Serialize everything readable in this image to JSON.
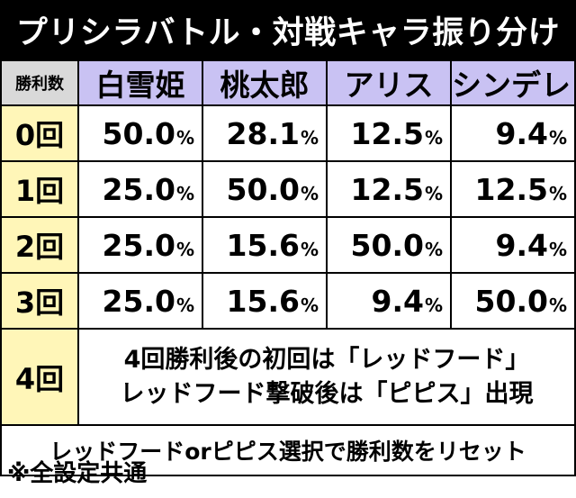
{
  "title": "プリシラバトル・対戦キャラ振り分け",
  "table": {
    "corner_label": "勝利数",
    "columns": [
      "白雪姫",
      "桃太郎",
      "アリス",
      "シンデレラ"
    ],
    "percent_sign": "%",
    "rows": [
      {
        "label": "0回",
        "values": [
          "50.0",
          "28.1",
          "12.5",
          "9.4"
        ]
      },
      {
        "label": "1回",
        "values": [
          "25.0",
          "50.0",
          "12.5",
          "12.5"
        ]
      },
      {
        "label": "2回",
        "values": [
          "25.0",
          "15.6",
          "50.0",
          "9.4"
        ]
      },
      {
        "label": "3回",
        "values": [
          "25.0",
          "15.6",
          "9.4",
          "50.0"
        ]
      }
    ],
    "row4": {
      "label": "4回",
      "note_line1": "4回勝利後の初回は「レッドフード」",
      "note_line2": "レッドフード撃破後は「ピピス」出現"
    },
    "reset_note": "レッドフードorピピス選択で勝利数をリセット"
  },
  "footnote": "※全設定共通",
  "colors": {
    "title_bg": "#000000",
    "header_bg": "#c9c2f3",
    "row_label_bg": "#fff6b8",
    "corner_bg": "#d9d9d9"
  }
}
